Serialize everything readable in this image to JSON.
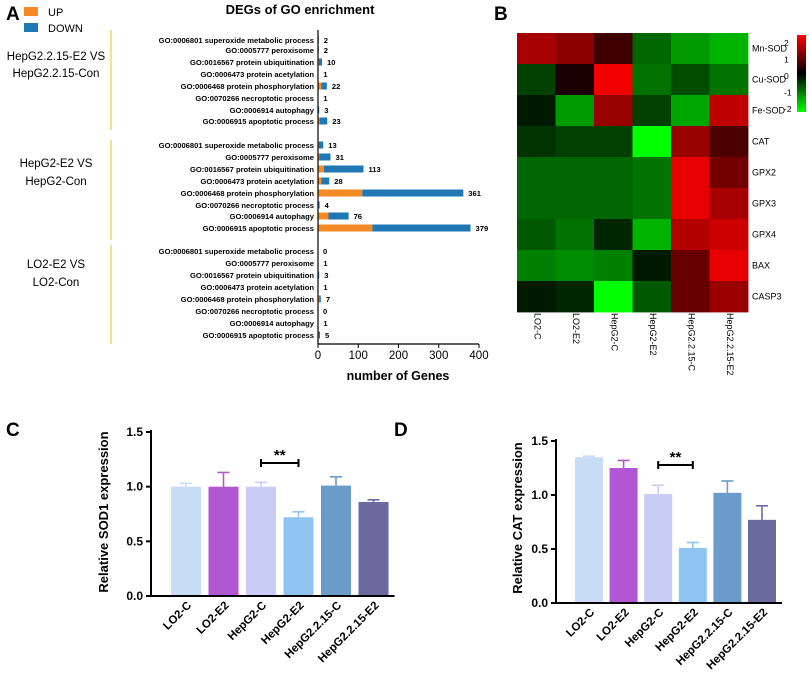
{
  "panel_letters": {
    "a": "A",
    "b": "B",
    "c": "C",
    "d": "D"
  },
  "chart_data": [
    {
      "panel": "A",
      "type": "bar",
      "orientation": "horizontal",
      "stacked": true,
      "title": "DEGs of GO enrichment",
      "xlabel": "number of Genes",
      "xlim": [
        0,
        400
      ],
      "xticks": [
        0,
        100,
        200,
        300,
        400
      ],
      "legend": [
        {
          "name": "UP",
          "color": "#f58a24"
        },
        {
          "name": "DOWN",
          "color": "#1f77b4"
        }
      ],
      "legend_position": "top-left",
      "groups": [
        {
          "label_lines": [
            "HepG2.2.15-E2 VS",
            "HepG2.2.15-Con"
          ],
          "terms": [
            "GO:0006801 superoxide metabolic process",
            "GO:0005777 peroxisome",
            "GO:0016567 protein ubiquitination",
            "GO:0006473 protein acetylation",
            "GO:0006468 protein phosphorylation",
            "GO:0070266 necroptotic process",
            "GO:0006914 autophagy",
            "GO:0006915 apoptotic process"
          ],
          "up": [
            0,
            0,
            2,
            0,
            8,
            0,
            0,
            4
          ],
          "down": [
            2,
            2,
            8,
            1,
            14,
            1,
            3,
            19
          ],
          "totals": [
            "2",
            "2",
            "10",
            "1",
            "22",
            "1",
            "3",
            "23"
          ]
        },
        {
          "label_lines": [
            "HepG2-E2 VS",
            "HepG2-Con"
          ],
          "terms": [
            "GO:0006801 superoxide metabolic process",
            "GO:0005777 peroxisome",
            "GO:0016567 protein ubiquitination",
            "GO:0006473 protein acetylation",
            "GO:0006468 protein phosphorylation",
            "GO:0070266 necroptotic process",
            "GO:0006914 autophagy",
            "GO:0006915 apoptotic process"
          ],
          "up": [
            2,
            3,
            15,
            8,
            110,
            0,
            26,
            135
          ],
          "down": [
            11,
            28,
            98,
            20,
            251,
            4,
            50,
            244
          ],
          "totals": [
            "13",
            "31",
            "113",
            "28",
            "361",
            "4",
            "76",
            "379"
          ]
        },
        {
          "label_lines": [
            "LO2-E2 VS",
            "LO2-Con"
          ],
          "terms": [
            "GO:0006801 superoxide metabolic process",
            "GO:0005777 peroxisome",
            "GO:0016567 protein ubiquitination",
            "GO:0006473 protein acetylation",
            "GO:0006468 protein phosphorylation",
            "GO:0070266 necroptotic process",
            "GO:0006914 autophagy",
            "GO:0006915 apoptotic process"
          ],
          "up": [
            0,
            0,
            1,
            0,
            3,
            0,
            0,
            2
          ],
          "down": [
            0,
            1,
            2,
            1,
            4,
            0,
            1,
            3
          ],
          "totals": [
            "0",
            "1",
            "3",
            "1",
            "7",
            "0",
            "1",
            "5"
          ]
        }
      ]
    },
    {
      "panel": "B",
      "type": "heatmap",
      "rows": [
        "Mn-SOD",
        "Cu-SOD",
        "Fe-SOD",
        "CAT",
        "GPX2",
        "GPX3",
        "GPX4",
        "BAX",
        "CASP3"
      ],
      "columns": [
        "LO2-C",
        "LO2-E2",
        "HepG2-C",
        "HepG2-E2",
        "HepG2.2.15-C",
        "HepG2.2.15-E2"
      ],
      "values": [
        [
          1.3,
          1.1,
          0.5,
          -0.8,
          -1.2,
          -1.4
        ],
        [
          -0.5,
          0.2,
          1.9,
          -0.9,
          -0.6,
          -0.9
        ],
        [
          -0.2,
          -1.2,
          1.2,
          -0.5,
          -1.3,
          1.5
        ],
        [
          -0.4,
          -0.5,
          -0.5,
          -2.0,
          1.2,
          0.6
        ],
        [
          -0.8,
          -0.8,
          -0.8,
          -0.9,
          1.8,
          0.9
        ],
        [
          -0.8,
          -0.8,
          -0.8,
          -0.9,
          1.8,
          1.3
        ],
        [
          -0.7,
          -0.9,
          -0.3,
          -1.4,
          1.4,
          1.6
        ],
        [
          -1.0,
          -1.1,
          -1.0,
          -0.2,
          0.8,
          1.8
        ],
        [
          -0.2,
          -0.3,
          -2.0,
          -0.7,
          0.8,
          1.2
        ]
      ],
      "vmin": -2,
      "vmax": 2,
      "scale_ticks": [
        "2",
        "1",
        "0",
        "-1",
        "-2"
      ],
      "colors": {
        "high": "#ff0000",
        "mid": "#000000",
        "low": "#00ff00"
      }
    },
    {
      "panel": "C",
      "type": "bar",
      "ylabel": "Relative SOD1 expression",
      "categories": [
        "LO2-C",
        "LO2-E2",
        "HepG2-C",
        "HepG2-E2",
        "HepG2.2.15-C",
        "HepG2.2.15-E2"
      ],
      "values": [
        1.0,
        1.0,
        1.0,
        0.72,
        1.01,
        0.86
      ],
      "errors": [
        0.03,
        0.13,
        0.04,
        0.05,
        0.08,
        0.02
      ],
      "colors": [
        "#c9dcf5",
        "#b257d4",
        "#c9cdf5",
        "#8fc4f2",
        "#6b9bc8",
        "#6b6a9e"
      ],
      "ylim": [
        0,
        1.5
      ],
      "yticks": [
        "0.0",
        "0.5",
        "1.0",
        "1.5"
      ],
      "significance": {
        "between": [
          2,
          3
        ],
        "label": "**"
      }
    },
    {
      "panel": "D",
      "type": "bar",
      "ylabel": "Relative CAT expression",
      "categories": [
        "LO2-C",
        "LO2-E2",
        "HepG2-C",
        "HepG2-E2",
        "HepG2.2.15-C",
        "HepG2.2.15-E2"
      ],
      "values": [
        1.35,
        1.25,
        1.01,
        0.51,
        1.02,
        0.77
      ],
      "errors": [
        0.01,
        0.07,
        0.08,
        0.05,
        0.11,
        0.13
      ],
      "colors": [
        "#c9dcf5",
        "#b257d4",
        "#c9cdf5",
        "#8fc4f2",
        "#6b9bc8",
        "#6b6a9e"
      ],
      "ylim": [
        0,
        1.5
      ],
      "yticks": [
        "0.0",
        "0.5",
        "1.0",
        "1.5"
      ],
      "significance": {
        "between": [
          2,
          3
        ],
        "label": "**"
      }
    }
  ]
}
